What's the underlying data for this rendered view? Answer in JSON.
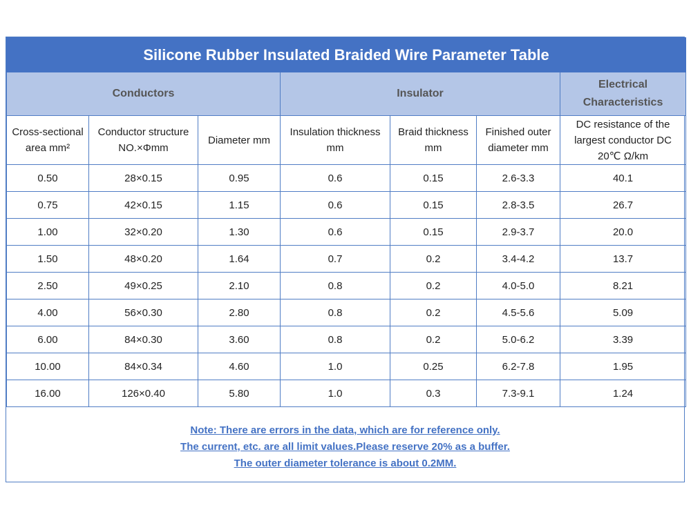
{
  "title": "Silicone Rubber Insulated Braided Wire Parameter Table",
  "groups": {
    "conductors": "Conductors",
    "insulator": "Insulator",
    "electrical": "Electrical Characteristics"
  },
  "columns": [
    "Cross-sectional area mm²",
    "Conductor structure NO.×Φmm",
    "Diameter mm",
    "Insulation thickness mm",
    "Braid thickness mm",
    "Finished outer diameter mm",
    "DC resistance of the largest conductor DC 20℃ Ω/km"
  ],
  "rows": [
    [
      "0.50",
      "28×0.15",
      "0.95",
      "0.6",
      "0.15",
      "2.6-3.3",
      "40.1"
    ],
    [
      "0.75",
      "42×0.15",
      "1.15",
      "0.6",
      "0.15",
      "2.8-3.5",
      "26.7"
    ],
    [
      "1.00",
      "32×0.20",
      "1.30",
      "0.6",
      "0.15",
      "2.9-3.7",
      "20.0"
    ],
    [
      "1.50",
      "48×0.20",
      "1.64",
      "0.7",
      "0.2",
      "3.4-4.2",
      "13.7"
    ],
    [
      "2.50",
      "49×0.25",
      "2.10",
      "0.8",
      "0.2",
      "4.0-5.0",
      "8.21"
    ],
    [
      "4.00",
      "56×0.30",
      "2.80",
      "0.8",
      "0.2",
      "4.5-5.6",
      "5.09"
    ],
    [
      "6.00",
      "84×0.30",
      "3.60",
      "0.8",
      "0.2",
      "5.0-6.2",
      "3.39"
    ],
    [
      "10.00",
      "84×0.34",
      "4.60",
      "1.0",
      "0.25",
      "6.2-7.8",
      "1.95"
    ],
    [
      "16.00",
      "126×0.40",
      "5.80",
      "1.0",
      "0.3",
      "7.3-9.1",
      "1.24"
    ]
  ],
  "notes": [
    "Note: There are errors in the data, which are for reference only.",
    "The current, etc. are all limit values.Please reserve 20% as a buffer.",
    "The outer diameter tolerance is about 0.2MM."
  ],
  "colors": {
    "header": "#4472c4",
    "subheader": "#b4c6e7",
    "border": "#4f7cc4",
    "note": "#4472c4"
  }
}
